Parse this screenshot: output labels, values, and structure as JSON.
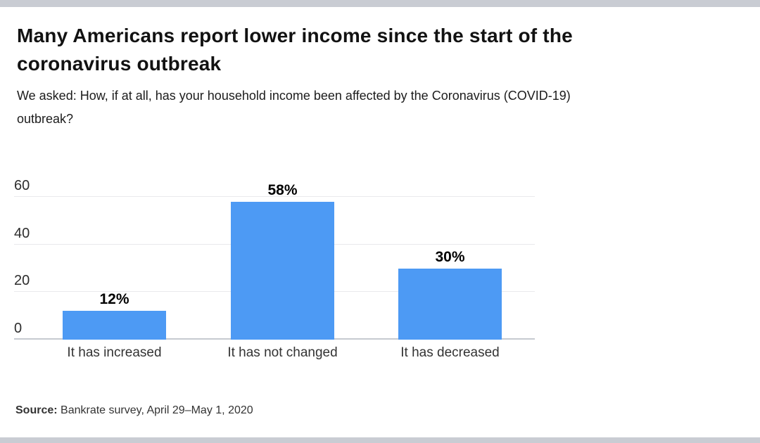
{
  "page": {
    "title": "Many Americans report lower income since the start of the coronavirus outbreak",
    "subtitle": "We asked: How, if at all, has your household income been affected by the Coronavirus (COVID-19) outbreak?",
    "source_label": "Source:",
    "source_text": " Bankrate survey, April 29–May 1, 2020"
  },
  "colors": {
    "bar": "#4d9af4",
    "frame_bar": "#c9ccd3",
    "gridline": "#e9e9ec",
    "baseline": "#c6cad0"
  },
  "chart_data": {
    "type": "bar",
    "title": "Many Americans report lower income since the start of the coronavirus outbreak",
    "subtitle": "We asked: How, if at all, has your household income been affected by the Coronavirus (COVID-19) outbreak?",
    "categories": [
      "It has increased",
      "It has not changed",
      "It has decreased"
    ],
    "values": [
      12,
      58,
      30
    ],
    "value_labels": [
      "12%",
      "58%",
      "30%"
    ],
    "xlabel": "",
    "ylabel": "",
    "y_ticks": [
      0,
      20,
      40,
      60
    ],
    "ylim": [
      0,
      60
    ],
    "grid": "horizontal",
    "legend": "none",
    "source": "Source: Bankrate survey, April 29–May 1, 2020"
  }
}
